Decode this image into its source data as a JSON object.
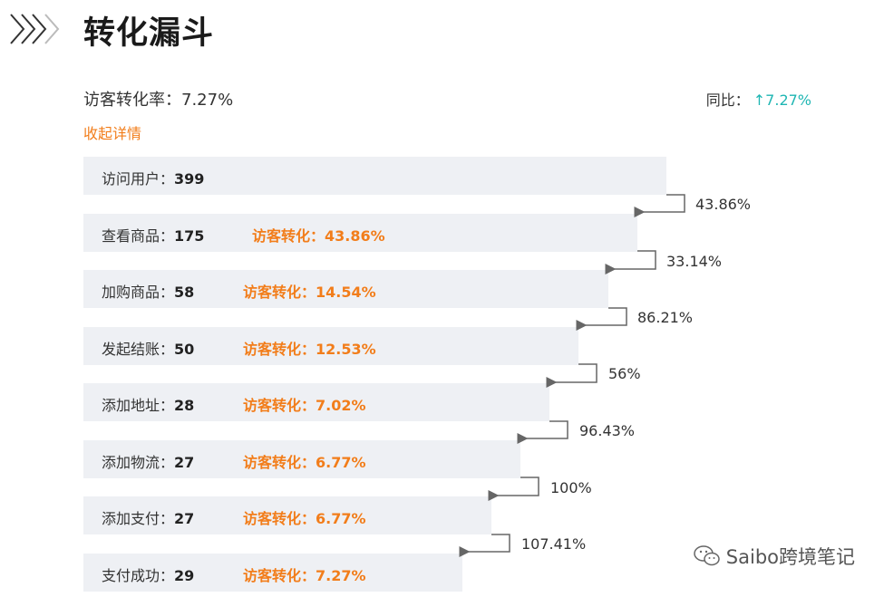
{
  "header": {
    "title": "转化漏斗"
  },
  "summary": {
    "rate_label": "访客转化率：7.27%",
    "yoy_label": "同比：",
    "yoy_arrow": "↑",
    "yoy_value": "7.27%",
    "collapse_link": "收起详情"
  },
  "funnel": {
    "steps": [
      {
        "label": "访问用户：",
        "value": "399",
        "conversion": ""
      },
      {
        "label": "查看商品：",
        "value": "175",
        "conversion": "访客转化：43.86%"
      },
      {
        "label": "加购商品：",
        "value": "58",
        "conversion": "访客转化：14.54%"
      },
      {
        "label": "发起结账：",
        "value": "50",
        "conversion": "访客转化：12.53%"
      },
      {
        "label": "添加地址：",
        "value": "28",
        "conversion": "访客转化：7.02%"
      },
      {
        "label": "添加物流：",
        "value": "27",
        "conversion": "访客转化：6.77%"
      },
      {
        "label": "添加支付：",
        "value": "27",
        "conversion": "访客转化：6.77%"
      },
      {
        "label": "支付成功：",
        "value": "29",
        "conversion": "访客转化：7.27%"
      }
    ],
    "step_rates": [
      "43.86%",
      "33.14%",
      "86.21%",
      "56%",
      "96.43%",
      "100%",
      "107.41%"
    ]
  },
  "watermark": {
    "text": "Saibo跨境笔记"
  },
  "colors": {
    "accent_orange": "#f27d1a",
    "up_teal": "#1fb6b3",
    "bar_bg": "#eef0f4"
  },
  "icons": {
    "header": "chevron-right-icon",
    "watermark": "wechat-icon"
  }
}
